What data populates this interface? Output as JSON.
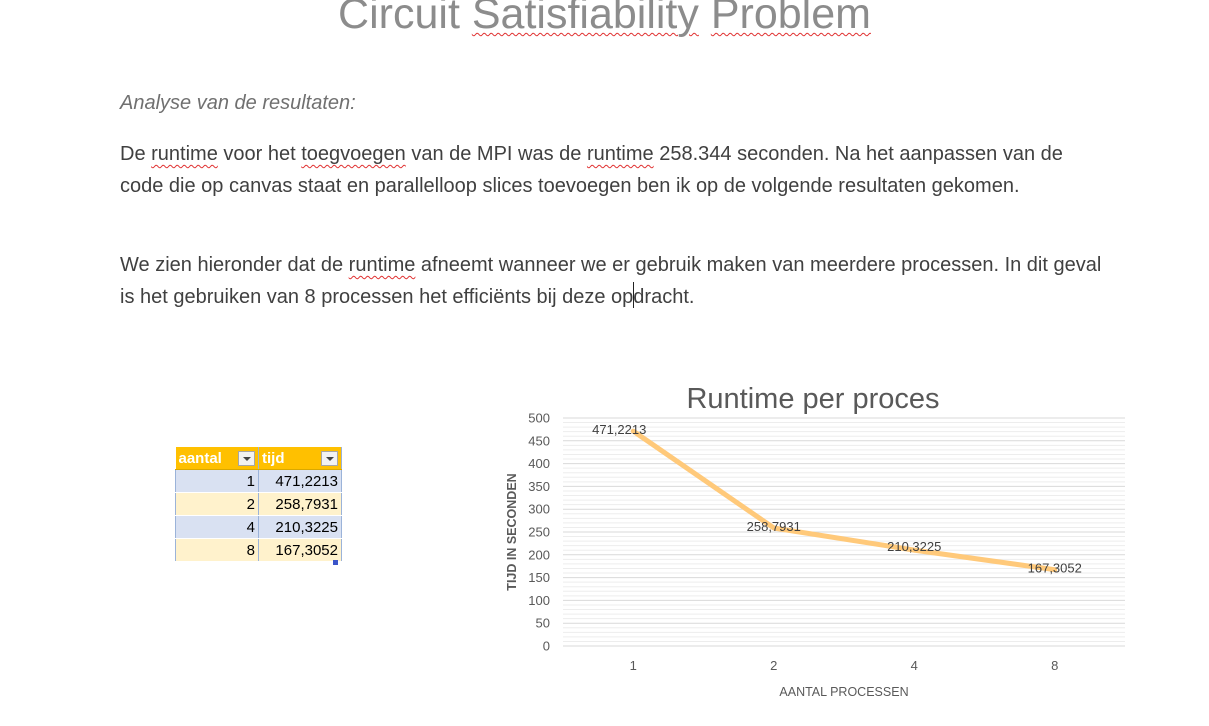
{
  "doc": {
    "title_word1": "Circuit",
    "title_word2": "Satisfiability",
    "title_word3": "Problem",
    "subtitle": "Analyse van de resultaten:",
    "p1": {
      "s1": "De ",
      "w1": "runtime",
      "s2": " voor het ",
      "w2": "toegvoegen",
      "s3": " van de MPI was de ",
      "w3": "runtime",
      "s4": " 258.344 seconden. Na het aanpassen van de code die op canvas staat en parallelloop slices toevoegen ben ik op de volgende resultaten gekomen."
    },
    "p2": {
      "s1": "We zien hieronder dat de ",
      "w1": "runtime",
      "s2": " afneemt wanneer we er gebruik maken van meerdere processen. In dit geval is het gebruiken van 8 processen het efficiënts bij deze op",
      "s3": "dracht."
    }
  },
  "table": {
    "headers": [
      "aantal",
      "tijd"
    ],
    "rows": [
      [
        "1",
        "471,2213"
      ],
      [
        "2",
        "258,7931"
      ],
      [
        "4",
        "210,3225"
      ],
      [
        "8",
        "167,3052"
      ]
    ]
  },
  "chart_data": {
    "type": "line",
    "title": "Runtime per proces",
    "xlabel": "AANTAL PROCESSEN",
    "ylabel": "TIJD IN SECONDEN",
    "categories": [
      "1",
      "2",
      "4",
      "8"
    ],
    "values": [
      471.2213,
      258.7931,
      210.3225,
      167.3052
    ],
    "data_labels": [
      "471,2213",
      "258,7931",
      "210,3225",
      "167,3052"
    ],
    "ylim": [
      0,
      500
    ],
    "yticks": [
      0,
      50,
      100,
      150,
      200,
      250,
      300,
      350,
      400,
      450,
      500
    ],
    "grid": true,
    "line_color": "#ffc97a"
  }
}
